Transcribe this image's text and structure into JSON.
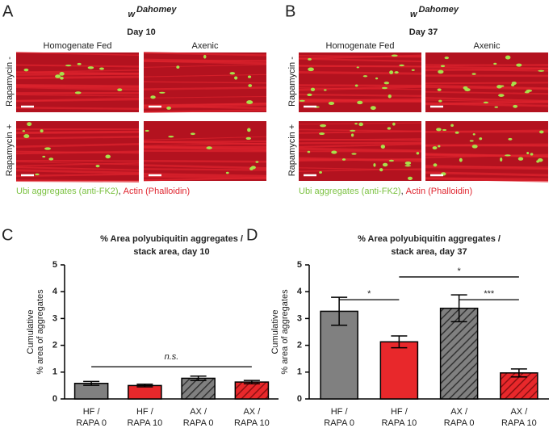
{
  "panels": [
    {
      "letter": "A",
      "strain": "w",
      "strain_sup": "Dahomey",
      "day": "Day 10",
      "columns": [
        "Homogenate Fed",
        "Axenic"
      ],
      "rows": [
        "Rapamycin -",
        "Rapamycin +"
      ],
      "legend_green": "Ubi aggregates (anti-FK2)",
      "legend_sep": ",",
      "legend_red": "Actin (Phalloidin)"
    },
    {
      "letter": "B",
      "strain": "w",
      "strain_sup": "Dahomey",
      "day": "Day 37",
      "columns": [
        "Homogenate Fed",
        "Axenic"
      ],
      "rows": [
        "Rapamycin -",
        "Rapamycin +"
      ],
      "legend_green": "Ubi aggregates (anti-FK2)",
      "legend_sep": ",",
      "legend_red": "Actin (Phalloidin)"
    }
  ],
  "chart_data": [
    {
      "type": "bar",
      "letter": "C",
      "title": [
        "% Area polyubiquitin aggregates /",
        "stack area, day 10"
      ],
      "y_label": [
        "Cumulative",
        "% area of aggregates"
      ],
      "categories": [
        [
          "HF /",
          "RAPA 0"
        ],
        [
          "HF /",
          "RAPA 10"
        ],
        [
          "AX /",
          "RAPA 0"
        ],
        [
          "AX /",
          "RAPA 10"
        ]
      ],
      "values": [
        0.58,
        0.5,
        0.77,
        0.63
      ],
      "errors": [
        0.07,
        0.05,
        0.08,
        0.06
      ],
      "colors": [
        "#808080",
        "#e8282b",
        "#808080",
        "#e8282b"
      ],
      "hatch": [
        false,
        false,
        true,
        true
      ],
      "ylim": [
        0,
        5
      ],
      "yticks": [
        0,
        1,
        2,
        3,
        4,
        5
      ],
      "annotations": [
        {
          "label": "n.s.",
          "from": 0,
          "to": 3,
          "y": 1.2,
          "italic": true
        }
      ]
    },
    {
      "type": "bar",
      "letter": "D",
      "title": [
        "% Area polyubiquitin aggregates /",
        "stack area, day 37"
      ],
      "y_label": [
        "Cumulative",
        "% area of aggregates"
      ],
      "categories": [
        [
          "HF /",
          "RAPA 0"
        ],
        [
          "HF /",
          "RAPA 10"
        ],
        [
          "AX /",
          "RAPA 0"
        ],
        [
          "AX /",
          "RAPA 10"
        ]
      ],
      "values": [
        3.27,
        2.13,
        3.38,
        0.97
      ],
      "errors": [
        0.52,
        0.22,
        0.5,
        0.15
      ],
      "colors": [
        "#808080",
        "#e8282b",
        "#808080",
        "#e8282b"
      ],
      "hatch": [
        false,
        false,
        true,
        true
      ],
      "ylim": [
        0,
        5
      ],
      "yticks": [
        0,
        1,
        2,
        3,
        4,
        5
      ],
      "annotations": [
        {
          "label": "*",
          "from": 0,
          "to": 1,
          "y": 3.7,
          "italic": false
        },
        {
          "label": "*",
          "from": 1,
          "to": 3,
          "y": 4.55,
          "italic": false
        },
        {
          "label": "***",
          "from": 2,
          "to": 3,
          "y": 3.7,
          "italic": false
        }
      ]
    }
  ]
}
